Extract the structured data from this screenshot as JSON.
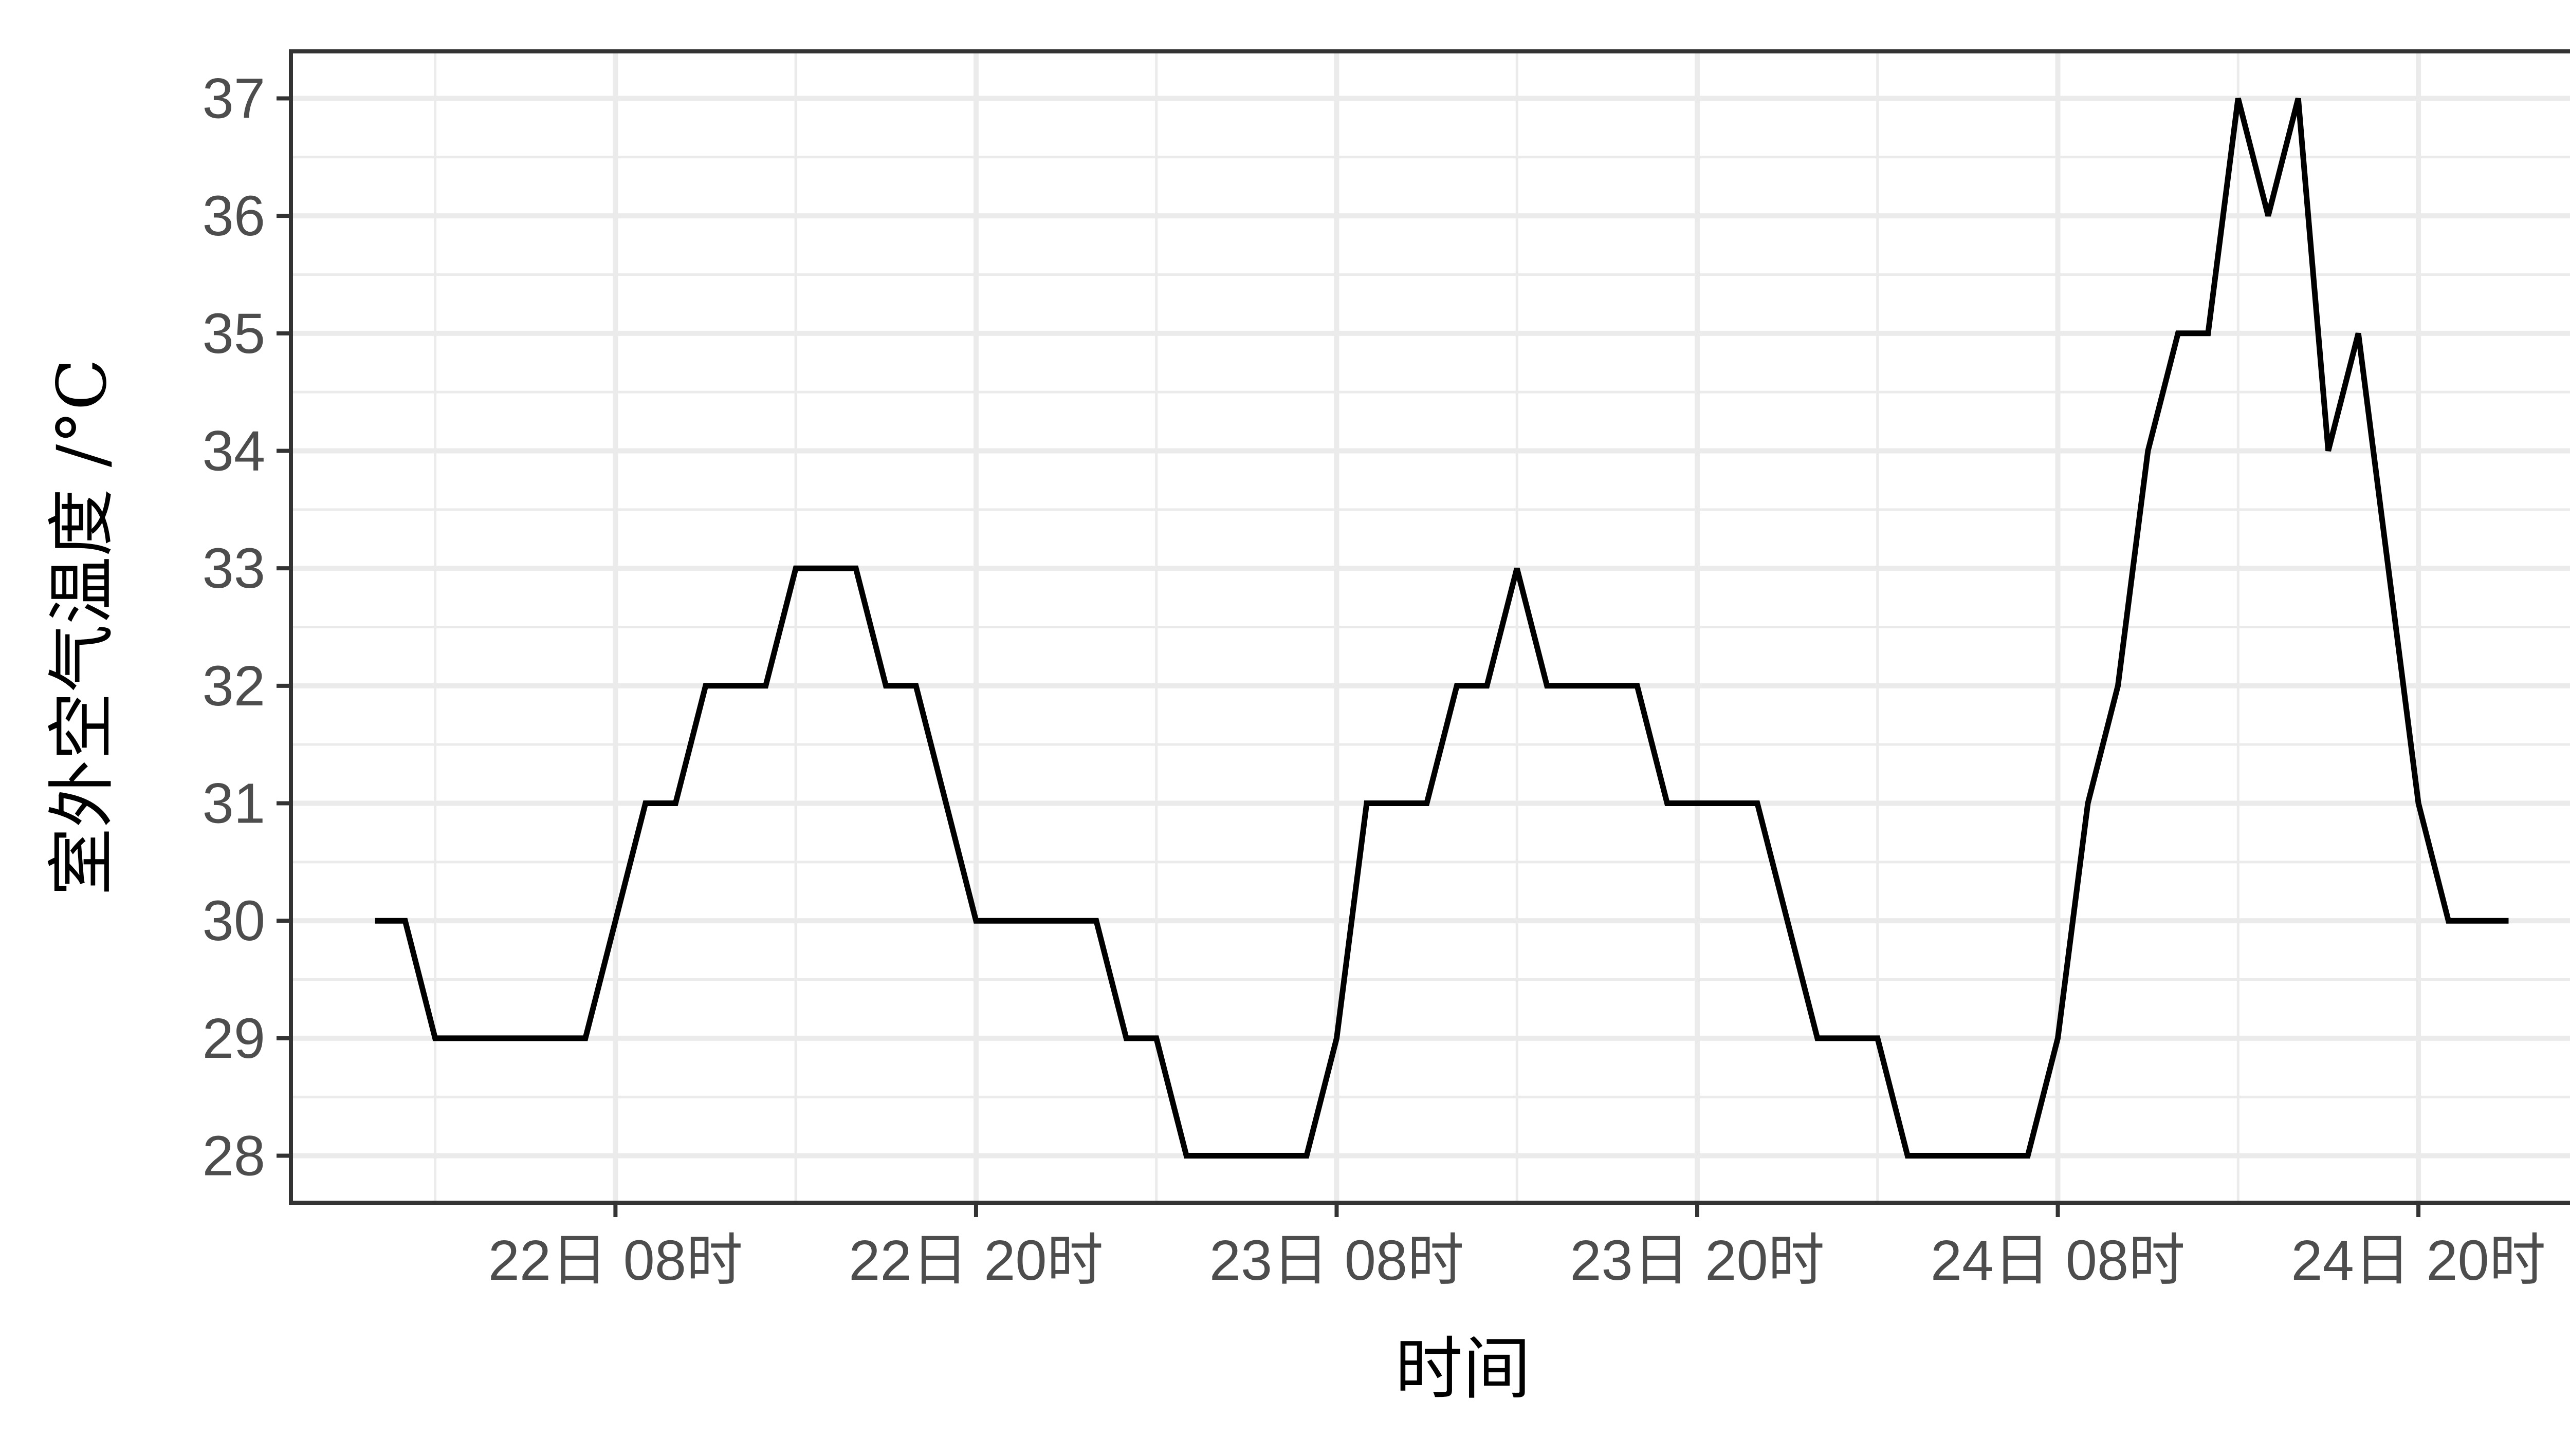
{
  "colors": {
    "line": "#000000",
    "panel_border": "#333333",
    "grid": "#ebebeb",
    "tick_text": "#4d4d4d"
  },
  "chart_data": {
    "type": "line",
    "xlabel": "时间",
    "ylabel": "室外空气温度 /°C",
    "ylim": [
      27.6,
      37.4
    ],
    "y_ticks": [
      28,
      29,
      30,
      31,
      32,
      33,
      34,
      35,
      36,
      37
    ],
    "x_unit": "hour index starting 22日 00时",
    "xlim": [
      -2.8,
      75.2
    ],
    "x_ticks": [
      {
        "value": 8,
        "label": "22日 08时"
      },
      {
        "value": 20,
        "label": "22日 20时"
      },
      {
        "value": 32,
        "label": "23日 08时"
      },
      {
        "value": 44,
        "label": "23日 20时"
      },
      {
        "value": 56,
        "label": "24日 08时"
      },
      {
        "value": 68,
        "label": "24日 20时"
      }
    ],
    "grid": true,
    "series": [
      {
        "x": [
          0,
          1,
          2,
          3,
          4,
          5,
          6,
          7,
          8,
          9,
          10,
          11,
          12,
          13,
          14,
          15,
          16,
          17,
          18,
          19,
          20,
          21,
          22,
          23,
          24,
          25,
          26,
          27,
          28,
          29,
          30,
          31,
          32,
          33,
          34,
          35,
          36,
          37,
          38,
          39,
          40,
          41,
          42,
          43,
          44,
          45,
          46,
          47,
          48,
          49,
          50,
          51,
          52,
          53,
          54,
          55,
          56,
          57,
          58,
          59,
          60,
          61,
          62,
          63,
          64,
          65,
          66,
          67,
          68,
          69,
          70,
          71
        ],
        "y": [
          30,
          30,
          29,
          29,
          29,
          29,
          29,
          29,
          30,
          31,
          31,
          32,
          32,
          32,
          33,
          33,
          33,
          32,
          32,
          31,
          30,
          30,
          30,
          30,
          30,
          29,
          29,
          28,
          28,
          28,
          28,
          28,
          29,
          31,
          31,
          31,
          32,
          32,
          33,
          32,
          32,
          32,
          32,
          31,
          31,
          31,
          31,
          30,
          29,
          29,
          29,
          28,
          28,
          28,
          28,
          28,
          29,
          31,
          32,
          34,
          35,
          35,
          37,
          36,
          37,
          34,
          35,
          33,
          31,
          30,
          30,
          30
        ]
      }
    ]
  }
}
